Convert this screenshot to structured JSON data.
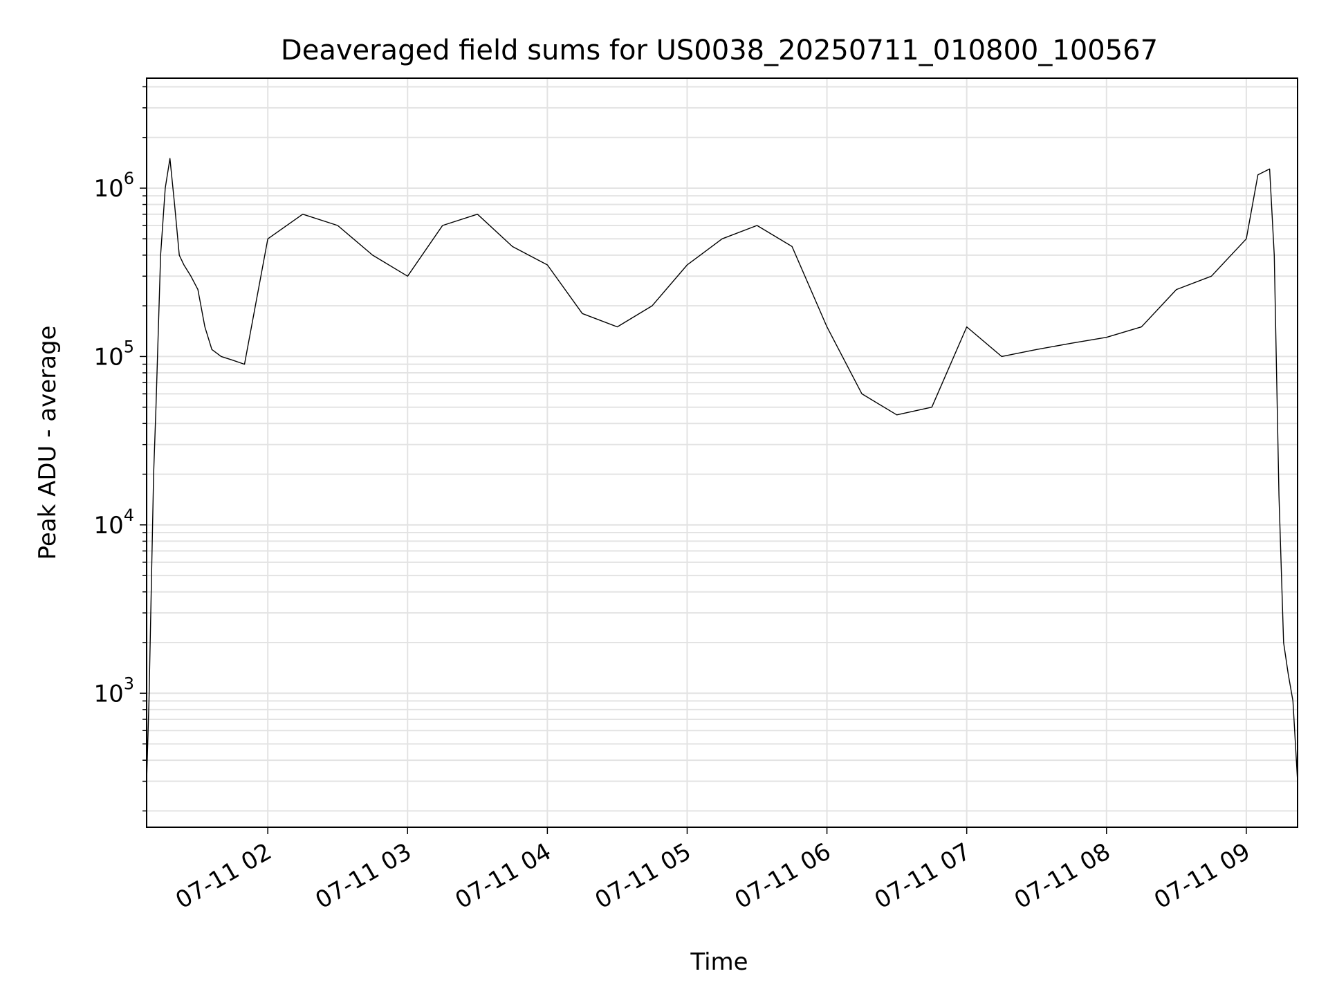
{
  "chart_data": {
    "type": "line",
    "title": "Deaveraged field sums for US0038_20250711_010800_100567",
    "xlabel": "Time",
    "ylabel": "Peak ADU - average",
    "y_scale": "log",
    "ylim": [
      160,
      4500000
    ],
    "xlim": [
      "2025-07-11 01:08",
      "2025-07-11 09:22"
    ],
    "x_ticks": [
      "07-11 02",
      "07-11 03",
      "07-11 04",
      "07-11 05",
      "07-11 06",
      "07-11 07",
      "07-11 08",
      "07-11 09"
    ],
    "y_ticks": [
      {
        "base": "10",
        "exp": "3",
        "value": 1000
      },
      {
        "base": "10",
        "exp": "4",
        "value": 10000
      },
      {
        "base": "10",
        "exp": "5",
        "value": 100000
      },
      {
        "base": "10",
        "exp": "6",
        "value": 1000000
      }
    ],
    "grid": true,
    "line_color": "#000000",
    "series": [
      {
        "x": [
          "2025-07-11 01:08",
          "2025-07-11 01:09",
          "2025-07-11 01:11",
          "2025-07-11 01:12",
          "2025-07-11 01:14",
          "2025-07-11 01:16",
          "2025-07-11 01:18",
          "2025-07-11 01:20",
          "2025-07-11 01:22",
          "2025-07-11 01:24",
          "2025-07-11 01:27",
          "2025-07-11 01:30",
          "2025-07-11 01:33",
          "2025-07-11 01:36",
          "2025-07-11 01:40",
          "2025-07-11 01:45",
          "2025-07-11 01:50",
          "2025-07-11 02:00",
          "2025-07-11 02:15",
          "2025-07-11 02:30",
          "2025-07-11 02:45",
          "2025-07-11 03:00",
          "2025-07-11 03:15",
          "2025-07-11 03:30",
          "2025-07-11 03:45",
          "2025-07-11 04:00",
          "2025-07-11 04:15",
          "2025-07-11 04:30",
          "2025-07-11 04:45",
          "2025-07-11 05:00",
          "2025-07-11 05:15",
          "2025-07-11 05:30",
          "2025-07-11 05:45",
          "2025-07-11 06:00",
          "2025-07-11 06:15",
          "2025-07-11 06:30",
          "2025-07-11 06:45",
          "2025-07-11 07:00",
          "2025-07-11 07:15",
          "2025-07-11 07:30",
          "2025-07-11 07:45",
          "2025-07-11 08:00",
          "2025-07-11 08:15",
          "2025-07-11 08:30",
          "2025-07-11 08:45",
          "2025-07-11 09:00",
          "2025-07-11 09:05",
          "2025-07-11 09:10",
          "2025-07-11 09:12",
          "2025-07-11 09:14",
          "2025-07-11 09:16",
          "2025-07-11 09:18",
          "2025-07-11 09:20",
          "2025-07-11 09:22"
        ],
        "y": [
          300,
          900,
          20000,
          50000,
          400000,
          1000000,
          1500000,
          800000,
          400000,
          350000,
          300000,
          250000,
          150000,
          110000,
          100000,
          95000,
          90000,
          500000,
          700000,
          600000,
          400000,
          300000,
          600000,
          700000,
          450000,
          350000,
          180000,
          150000,
          200000,
          350000,
          500000,
          600000,
          450000,
          150000,
          60000,
          45000,
          50000,
          150000,
          100000,
          110000,
          120000,
          130000,
          150000,
          250000,
          300000,
          500000,
          1200000,
          1300000,
          400000,
          15000,
          2000,
          1300,
          900,
          300
        ]
      }
    ]
  }
}
